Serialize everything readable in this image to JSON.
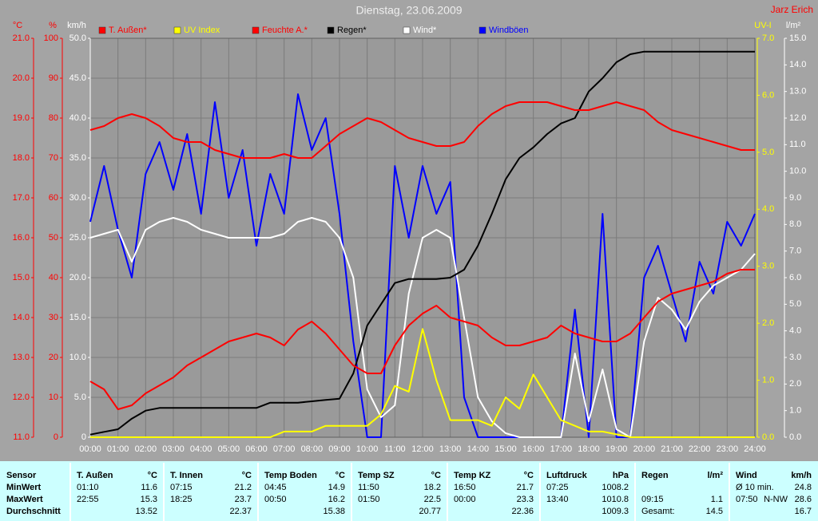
{
  "chart_data": {
    "type": "line",
    "title": "Dienstag, 23.06.2009",
    "author": "Jarz Erich",
    "grid": true,
    "x": [
      0,
      0.5,
      1,
      1.5,
      2,
      2.5,
      3,
      3.5,
      4,
      4.5,
      5,
      5.5,
      6,
      6.5,
      7,
      7.5,
      8,
      8.5,
      9,
      9.5,
      10,
      10.5,
      11,
      11.5,
      12,
      12.5,
      13,
      13.5,
      14,
      14.5,
      15,
      15.5,
      16,
      16.5,
      17,
      17.5,
      18,
      18.5,
      19,
      19.5,
      20,
      20.5,
      21,
      21.5,
      22,
      22.5,
      23,
      23.5,
      24
    ],
    "xlim": [
      0,
      24
    ],
    "xticks": [
      {
        "value": 0,
        "label": "00:00"
      },
      {
        "value": 1,
        "label": "01:00"
      },
      {
        "value": 2,
        "label": "02:00"
      },
      {
        "value": 3,
        "label": "03:00"
      },
      {
        "value": 4,
        "label": "04:00"
      },
      {
        "value": 5,
        "label": "05:00"
      },
      {
        "value": 6,
        "label": "06:00"
      },
      {
        "value": 7,
        "label": "07:00"
      },
      {
        "value": 8,
        "label": "08:00"
      },
      {
        "value": 9,
        "label": "09:00"
      },
      {
        "value": 10,
        "label": "10:00"
      },
      {
        "value": 11,
        "label": "11:00"
      },
      {
        "value": 12,
        "label": "12:00"
      },
      {
        "value": 13,
        "label": "13:00"
      },
      {
        "value": 14,
        "label": "14:00"
      },
      {
        "value": 15,
        "label": "15:00"
      },
      {
        "value": 16,
        "label": "16:00"
      },
      {
        "value": 17,
        "label": "17:00"
      },
      {
        "value": 18,
        "label": "18:00"
      },
      {
        "value": 19,
        "label": "19:00"
      },
      {
        "value": 20,
        "label": "20:00"
      },
      {
        "value": 21,
        "label": "21:00"
      },
      {
        "value": 22,
        "label": "22:00"
      },
      {
        "value": 23,
        "label": "23:00"
      },
      {
        "value": 24,
        "label": "24:00"
      }
    ],
    "grid_axis": 2,
    "axes": [
      {
        "label": "°C",
        "color": "#ff0000",
        "lim": [
          11,
          21
        ],
        "ticks": [
          {
            "value": 11,
            "label": "11.0"
          },
          {
            "value": 12,
            "label": "12.0"
          },
          {
            "value": 13,
            "label": "13.0"
          },
          {
            "value": 14,
            "label": "14.0"
          },
          {
            "value": 15,
            "label": "15.0"
          },
          {
            "value": 16,
            "label": "16.0"
          },
          {
            "value": 17,
            "label": "17.0"
          },
          {
            "value": 18,
            "label": "18.0"
          },
          {
            "value": 19,
            "label": "19.0"
          },
          {
            "value": 20,
            "label": "20.0"
          },
          {
            "value": 21,
            "label": "21.0"
          }
        ]
      },
      {
        "label": "%",
        "color": "#ff0000",
        "lim": [
          0,
          100
        ],
        "ticks": [
          0,
          10,
          20,
          30,
          40,
          50,
          60,
          70,
          80,
          90,
          100
        ]
      },
      {
        "label": "km/h",
        "color": "#ffffff",
        "lim": [
          0,
          50
        ],
        "ticks": [
          0,
          {
            "value": 5,
            "label": "5.0"
          },
          {
            "value": 10,
            "label": "10.0"
          },
          {
            "value": 15,
            "label": "15.0"
          },
          {
            "value": 20,
            "label": "20.0"
          },
          {
            "value": 25,
            "label": "25.0"
          },
          {
            "value": 30,
            "label": "30.0"
          },
          {
            "value": 35,
            "label": "35.0"
          },
          {
            "value": 40,
            "label": "40.0"
          },
          {
            "value": 45,
            "label": "45.0"
          },
          {
            "value": 50,
            "label": "50.0"
          }
        ]
      },
      {
        "label": "UV-I",
        "color": "#ffff00",
        "lim": [
          0,
          7
        ],
        "ticks": [
          {
            "value": 0,
            "label": "0.0"
          },
          {
            "value": 1,
            "label": "1.0"
          },
          {
            "value": 2,
            "label": "2.0"
          },
          {
            "value": 3,
            "label": "3.0"
          },
          {
            "value": 4,
            "label": "4.0"
          },
          {
            "value": 5,
            "label": "5.0"
          },
          {
            "value": 6,
            "label": "6.0"
          },
          {
            "value": 7,
            "label": "7.0"
          }
        ]
      },
      {
        "label": "l/m²",
        "color": "#ffffff",
        "lim": [
          0,
          15
        ],
        "ticks": [
          {
            "value": 0,
            "label": "0.0"
          },
          {
            "value": 1,
            "label": "1.0"
          },
          {
            "value": 2,
            "label": "2.0"
          },
          {
            "value": 3,
            "label": "3.0"
          },
          {
            "value": 4,
            "label": "4.0"
          },
          {
            "value": 5,
            "label": "5.0"
          },
          {
            "value": 6,
            "label": "6.0"
          },
          {
            "value": 7,
            "label": "7.0"
          },
          {
            "value": 8,
            "label": "8.0"
          },
          {
            "value": 9,
            "label": "9.0"
          },
          {
            "value": 10,
            "label": "10.0"
          },
          {
            "value": 11,
            "label": "11.0"
          },
          {
            "value": 12,
            "label": "12.0"
          },
          {
            "value": 13,
            "label": "13.0"
          },
          {
            "value": 14,
            "label": "14.0"
          },
          {
            "value": 15,
            "label": "15.0"
          }
        ]
      }
    ],
    "series": [
      {
        "name": "T. Außen*",
        "color": "#ff0000",
        "axis": 0,
        "values": [
          12.4,
          12.2,
          11.7,
          11.8,
          12.1,
          12.3,
          12.5,
          12.8,
          13.0,
          13.2,
          13.4,
          13.5,
          13.6,
          13.5,
          13.3,
          13.7,
          13.9,
          13.6,
          13.2,
          12.8,
          12.6,
          12.6,
          13.3,
          13.8,
          14.1,
          14.3,
          14.0,
          13.9,
          13.8,
          13.5,
          13.3,
          13.3,
          13.4,
          13.5,
          13.8,
          13.6,
          13.5,
          13.4,
          13.4,
          13.6,
          14.0,
          14.4,
          14.6,
          14.7,
          14.8,
          14.9,
          15.1,
          15.2,
          15.2
        ]
      },
      {
        "name": "UV Index",
        "color": "#ffff00",
        "axis": 3,
        "values": [
          0,
          0,
          0,
          0,
          0,
          0,
          0,
          0,
          0,
          0,
          0,
          0,
          0,
          0,
          0.1,
          0.1,
          0.1,
          0.2,
          0.2,
          0.2,
          0.2,
          0.4,
          0.9,
          0.8,
          1.9,
          1.0,
          0.3,
          0.3,
          0.3,
          0.2,
          0.7,
          0.5,
          1.1,
          0.7,
          0.3,
          0.2,
          0.1,
          0.1,
          0.05,
          0,
          0,
          0,
          0,
          0,
          0,
          0,
          0,
          0,
          0
        ]
      },
      {
        "name": "Feuchte A.*",
        "color": "#ff0000",
        "axis": 1,
        "values": [
          77,
          78,
          80,
          81,
          80,
          78,
          75,
          74,
          74,
          72,
          71,
          70,
          70,
          70,
          71,
          70,
          70,
          73,
          76,
          78,
          80,
          79,
          77,
          75,
          74,
          73,
          73,
          74,
          78,
          81,
          83,
          84,
          84,
          84,
          83,
          82,
          82,
          83,
          84,
          83,
          82,
          79,
          77,
          76,
          75,
          74,
          73,
          72,
          72
        ]
      },
      {
        "name": "Regen*",
        "color": "#000000",
        "axis": 4,
        "values": [
          0.1,
          0.2,
          0.3,
          0.7,
          1.0,
          1.1,
          1.1,
          1.1,
          1.1,
          1.1,
          1.1,
          1.1,
          1.1,
          1.3,
          1.3,
          1.3,
          1.35,
          1.4,
          1.45,
          2.4,
          4.2,
          5.0,
          5.8,
          5.95,
          5.95,
          5.95,
          6.0,
          6.3,
          7.2,
          8.4,
          9.7,
          10.5,
          10.9,
          11.4,
          11.8,
          12.0,
          13.0,
          13.5,
          14.1,
          14.4,
          14.5,
          14.5,
          14.5,
          14.5,
          14.5,
          14.5,
          14.5,
          14.5,
          14.5
        ]
      },
      {
        "name": "Wind*",
        "color": "#ffffff",
        "axis": 2,
        "values": [
          25,
          25.5,
          26,
          22,
          26,
          27,
          27.5,
          27,
          26,
          25.5,
          25,
          25,
          25,
          25,
          25.5,
          27,
          27.5,
          27,
          25,
          20,
          6,
          2.5,
          4,
          18,
          25,
          26,
          25,
          15,
          5,
          2,
          0.5,
          0,
          0,
          0,
          0,
          10.5,
          2,
          8.5,
          1,
          0,
          12,
          17.5,
          16,
          13.5,
          17,
          19,
          20,
          21,
          23
        ]
      },
      {
        "name": "Windböen",
        "color": "#0000ff",
        "axis": 2,
        "values": [
          27,
          34,
          26,
          20,
          33,
          37,
          31,
          38,
          28,
          42,
          30,
          36,
          24,
          33,
          28,
          43,
          36,
          40,
          28,
          12,
          0,
          0,
          34,
          25,
          34,
          28,
          32,
          5,
          0,
          0,
          0,
          0,
          0,
          0,
          0,
          16,
          0,
          28,
          0,
          0,
          20,
          24,
          18,
          12,
          22,
          18,
          27,
          24,
          28
        ]
      }
    ]
  },
  "table": {
    "row_header": "Sensor",
    "row_labels": [
      "MinWert",
      "MaxWert",
      "Durchschnitt"
    ],
    "columns": [
      {
        "name": "T. Außen",
        "unit": "°C",
        "rows": [
          [
            "01:10",
            11.6
          ],
          [
            "22:55",
            15.3
          ],
          [
            13.52
          ]
        ]
      },
      {
        "name": "T. Innen",
        "unit": "°C",
        "rows": [
          [
            "07:15",
            21.2
          ],
          [
            "18:25",
            23.7
          ],
          [
            22.37
          ]
        ]
      },
      {
        "name": "Temp Boden",
        "unit": "°C",
        "rows": [
          [
            "04:45",
            14.9
          ],
          [
            "00:50",
            16.2
          ],
          [
            15.38
          ]
        ]
      },
      {
        "name": "Temp SZ",
        "unit": "°C",
        "rows": [
          [
            "11:50",
            18.2
          ],
          [
            "01:50",
            22.5
          ],
          [
            20.77
          ]
        ]
      },
      {
        "name": "Temp KZ",
        "unit": "°C",
        "rows": [
          [
            "16:50",
            21.7
          ],
          [
            "00:00",
            23.3
          ],
          [
            22.36
          ]
        ]
      },
      {
        "name": "Luftdruck",
        "unit": "hPa",
        "rows": [
          [
            "07:25",
            1008.2
          ],
          [
            "13:40",
            1010.8
          ],
          [
            1009.3
          ]
        ]
      },
      {
        "name": "Regen",
        "unit": "l/m²",
        "rows": [
          [],
          [
            "09:15",
            1.1
          ],
          [
            "Gesamt:",
            14.5
          ]
        ]
      },
      {
        "name": "Wind",
        "unit": "km/h",
        "rows": [
          [
            "Ø 10 min.",
            24.8
          ],
          [
            "07:50",
            "N-NW",
            28.6
          ],
          [
            16.7
          ]
        ]
      }
    ]
  }
}
